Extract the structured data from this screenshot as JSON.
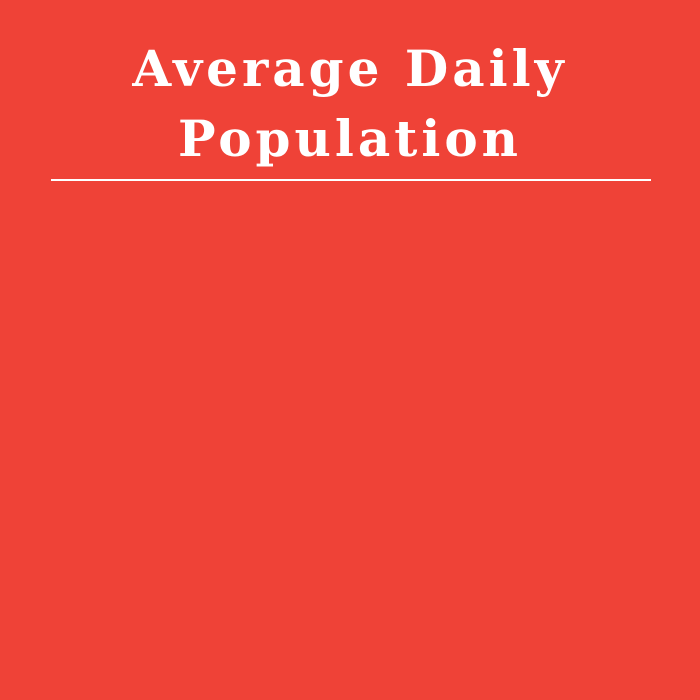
{
  "title": {
    "line1": "Average Daily",
    "line2": "Population"
  },
  "colors": {
    "background": "#ef4237",
    "text": "#ffffff",
    "divider": "#ffffff"
  }
}
